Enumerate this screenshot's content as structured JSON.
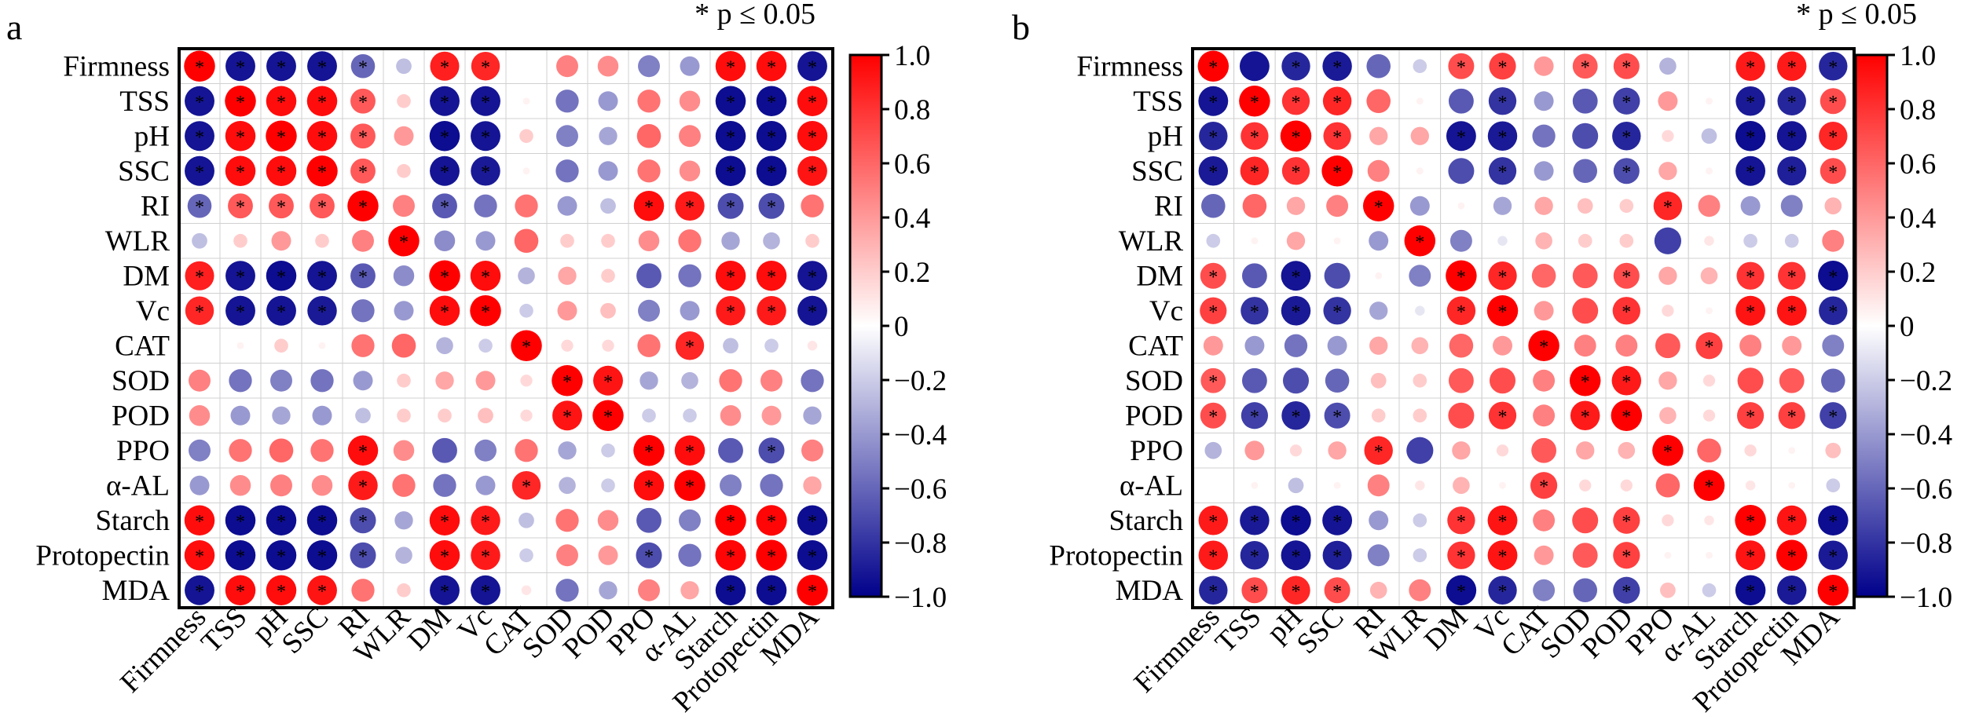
{
  "legend_note": "* p ≤ 0.05",
  "colorbar": {
    "ticks": [
      "1.0",
      "0.8",
      "0.6",
      "0.4",
      "0.2",
      "0",
      "−0.2",
      "−0.4",
      "−0.6",
      "−0.8",
      "−1.0"
    ],
    "tick_values": [
      1.0,
      0.8,
      0.6,
      0.4,
      0.2,
      0,
      -0.2,
      -0.4,
      -0.6,
      -0.8,
      -1.0
    ],
    "colors": {
      "max": "#ff0000",
      "mid": "#ffffff",
      "min": "#00008b"
    }
  },
  "chart_data": [
    {
      "type": "heatmap",
      "panel": "a",
      "title": "a",
      "variables": [
        "Firmness",
        "TSS",
        "pH",
        "SSC",
        "RI",
        "WLR",
        "DM",
        "Vc",
        "CAT",
        "SOD",
        "POD",
        "PPO",
        "α-AL",
        "Starch",
        "Protopectin",
        "MDA"
      ],
      "value_range": [
        -1,
        1
      ],
      "matrix": [
        [
          1,
          -0.92,
          -0.92,
          -0.92,
          -0.6,
          -0.25,
          0.88,
          0.85,
          0,
          0.5,
          0.45,
          -0.5,
          -0.4,
          0.95,
          0.95,
          -0.92
        ],
        [
          -0.92,
          1,
          0.95,
          0.95,
          0.65,
          0.2,
          -0.92,
          -0.92,
          0.05,
          -0.55,
          -0.4,
          0.55,
          0.45,
          -0.95,
          -0.95,
          0.95
        ],
        [
          -0.92,
          0.95,
          1,
          0.95,
          0.65,
          0.4,
          -0.95,
          -0.92,
          0.2,
          -0.5,
          -0.35,
          0.6,
          0.5,
          -0.95,
          -0.95,
          0.95
        ],
        [
          -0.92,
          0.95,
          0.95,
          1,
          0.65,
          0.2,
          -0.92,
          -0.9,
          0.05,
          -0.55,
          -0.4,
          0.55,
          0.45,
          -0.95,
          -0.95,
          0.92
        ],
        [
          -0.6,
          0.65,
          0.65,
          0.65,
          1,
          0.5,
          -0.65,
          -0.55,
          0.55,
          -0.4,
          -0.25,
          0.95,
          0.9,
          -0.7,
          -0.7,
          0.55
        ],
        [
          -0.25,
          0.2,
          0.4,
          0.2,
          0.5,
          1,
          -0.45,
          -0.4,
          0.6,
          0.2,
          0.2,
          0.45,
          0.55,
          -0.35,
          -0.3,
          0.2
        ],
        [
          0.88,
          -0.92,
          -0.95,
          -0.92,
          -0.65,
          -0.45,
          1,
          0.95,
          -0.3,
          0.35,
          0.2,
          -0.65,
          -0.55,
          0.95,
          0.95,
          -0.92
        ],
        [
          0.85,
          -0.92,
          -0.92,
          -0.9,
          -0.55,
          -0.4,
          0.95,
          1,
          -0.2,
          0.4,
          0.25,
          -0.5,
          -0.4,
          0.9,
          0.9,
          -0.92
        ],
        [
          0,
          0.05,
          0.2,
          0.05,
          0.55,
          0.6,
          -0.3,
          -0.2,
          1,
          0.15,
          0.15,
          0.55,
          0.85,
          -0.25,
          -0.2,
          0.1
        ],
        [
          0.5,
          -0.55,
          -0.5,
          -0.55,
          -0.4,
          0.2,
          0.35,
          0.4,
          0.15,
          1,
          0.92,
          -0.35,
          -0.3,
          0.55,
          0.5,
          -0.55
        ],
        [
          0.45,
          -0.4,
          -0.35,
          -0.4,
          -0.25,
          0.2,
          0.2,
          0.25,
          0.15,
          0.92,
          1,
          -0.2,
          -0.2,
          0.45,
          0.4,
          -0.35
        ],
        [
          -0.5,
          0.55,
          0.6,
          0.55,
          0.95,
          0.45,
          -0.65,
          -0.5,
          0.55,
          -0.35,
          -0.2,
          1,
          0.95,
          -0.65,
          -0.7,
          0.5
        ],
        [
          -0.4,
          0.45,
          0.5,
          0.45,
          0.9,
          0.55,
          -0.55,
          -0.4,
          0.85,
          -0.3,
          -0.2,
          0.95,
          1,
          -0.5,
          -0.55,
          0.35
        ],
        [
          0.95,
          -0.95,
          -0.95,
          -0.95,
          -0.7,
          -0.35,
          0.95,
          0.9,
          -0.25,
          0.55,
          0.45,
          -0.65,
          -0.5,
          1,
          0.98,
          -0.95
        ],
        [
          0.95,
          -0.95,
          -0.95,
          -0.95,
          -0.7,
          -0.3,
          0.95,
          0.9,
          -0.2,
          0.5,
          0.4,
          -0.7,
          -0.55,
          0.98,
          1,
          -0.95
        ],
        [
          -0.92,
          0.95,
          0.95,
          0.92,
          0.55,
          0.2,
          -0.92,
          -0.92,
          0.1,
          -0.55,
          -0.35,
          0.5,
          0.35,
          -0.95,
          -0.95,
          1
        ]
      ],
      "significant": [
        [
          1,
          1,
          1,
          1,
          1,
          0,
          1,
          1,
          0,
          0,
          0,
          0,
          0,
          1,
          1,
          1
        ],
        [
          1,
          1,
          1,
          1,
          1,
          0,
          1,
          1,
          0,
          0,
          0,
          0,
          0,
          1,
          1,
          1
        ],
        [
          1,
          1,
          1,
          1,
          1,
          0,
          1,
          1,
          0,
          0,
          0,
          0,
          0,
          1,
          1,
          1
        ],
        [
          1,
          1,
          1,
          1,
          1,
          0,
          1,
          1,
          0,
          0,
          0,
          0,
          0,
          1,
          1,
          1
        ],
        [
          1,
          1,
          1,
          1,
          1,
          0,
          1,
          0,
          0,
          0,
          0,
          1,
          1,
          1,
          1,
          0
        ],
        [
          0,
          0,
          0,
          0,
          0,
          1,
          0,
          0,
          0,
          0,
          0,
          0,
          0,
          0,
          0,
          0
        ],
        [
          1,
          1,
          1,
          1,
          1,
          0,
          1,
          1,
          0,
          0,
          0,
          0,
          0,
          1,
          1,
          1
        ],
        [
          1,
          1,
          1,
          1,
          0,
          0,
          1,
          1,
          0,
          0,
          0,
          0,
          0,
          1,
          1,
          1
        ],
        [
          0,
          0,
          0,
          0,
          0,
          0,
          0,
          0,
          1,
          0,
          0,
          0,
          1,
          0,
          0,
          0
        ],
        [
          0,
          0,
          0,
          0,
          0,
          0,
          0,
          0,
          0,
          1,
          1,
          0,
          0,
          0,
          0,
          0
        ],
        [
          0,
          0,
          0,
          0,
          0,
          0,
          0,
          0,
          0,
          1,
          1,
          0,
          0,
          0,
          0,
          0
        ],
        [
          0,
          0,
          0,
          0,
          1,
          0,
          0,
          0,
          0,
          0,
          0,
          1,
          1,
          0,
          1,
          0
        ],
        [
          0,
          0,
          0,
          0,
          1,
          0,
          0,
          0,
          1,
          0,
          0,
          1,
          1,
          0,
          0,
          0
        ],
        [
          1,
          1,
          1,
          1,
          1,
          0,
          1,
          1,
          0,
          0,
          0,
          0,
          0,
          1,
          1,
          1
        ],
        [
          1,
          1,
          1,
          1,
          1,
          0,
          1,
          1,
          0,
          0,
          0,
          1,
          0,
          1,
          1,
          1
        ],
        [
          1,
          1,
          1,
          1,
          0,
          0,
          1,
          1,
          0,
          0,
          0,
          0,
          0,
          1,
          1,
          1
        ]
      ]
    },
    {
      "type": "heatmap",
      "panel": "b",
      "title": "b",
      "variables": [
        "Firmness",
        "TSS",
        "pH",
        "SSC",
        "RI",
        "WLR",
        "DM",
        "Vc",
        "CAT",
        "SOD",
        "POD",
        "PPO",
        "α-AL",
        "Starch",
        "Protopectin",
        "MDA"
      ],
      "value_range": [
        -1,
        1
      ],
      "matrix": [
        [
          1,
          -0.92,
          -0.85,
          -0.9,
          -0.6,
          -0.2,
          0.7,
          0.75,
          0.4,
          0.65,
          0.7,
          -0.3,
          0,
          0.9,
          0.9,
          -0.85
        ],
        [
          -0.92,
          1,
          0.8,
          0.85,
          0.6,
          0.05,
          -0.65,
          -0.8,
          -0.4,
          -0.65,
          -0.75,
          0.4,
          0.05,
          -0.9,
          -0.85,
          0.7
        ],
        [
          -0.85,
          0.8,
          1,
          0.8,
          0.35,
          0.35,
          -0.92,
          -0.9,
          -0.55,
          -0.7,
          -0.85,
          0.15,
          -0.25,
          -0.95,
          -0.92,
          0.85
        ],
        [
          -0.9,
          0.85,
          0.8,
          1,
          0.5,
          0.05,
          -0.7,
          -0.8,
          -0.4,
          -0.6,
          -0.7,
          0.35,
          0.05,
          -0.92,
          -0.88,
          0.7
        ],
        [
          -0.6,
          0.6,
          0.35,
          0.5,
          1,
          -0.4,
          0.05,
          -0.35,
          0.35,
          0.25,
          0.2,
          0.85,
          0.5,
          -0.4,
          -0.5,
          0.3
        ],
        [
          -0.2,
          0.05,
          0.35,
          0.05,
          -0.4,
          1,
          -0.5,
          -0.1,
          0.3,
          0.2,
          0.2,
          -0.75,
          0.1,
          -0.2,
          -0.2,
          0.5
        ],
        [
          0.7,
          -0.65,
          -0.92,
          -0.7,
          0.05,
          -0.5,
          1,
          0.85,
          0.6,
          0.65,
          0.7,
          0.35,
          0.3,
          0.8,
          0.8,
          -0.95
        ],
        [
          0.75,
          -0.8,
          -0.9,
          -0.8,
          -0.35,
          -0.1,
          0.85,
          1,
          0.4,
          0.7,
          0.8,
          0.15,
          0.05,
          0.92,
          0.92,
          -0.85
        ],
        [
          0.4,
          -0.4,
          -0.55,
          -0.4,
          0.35,
          0.3,
          0.6,
          0.4,
          1,
          0.5,
          0.5,
          0.65,
          0.75,
          0.5,
          0.4,
          -0.5
        ],
        [
          0.65,
          -0.65,
          -0.7,
          -0.6,
          0.25,
          0.2,
          0.65,
          0.7,
          0.5,
          1,
          0.9,
          0.35,
          0.15,
          0.7,
          0.65,
          -0.6
        ],
        [
          0.7,
          -0.75,
          -0.85,
          -0.7,
          0.2,
          0.2,
          0.7,
          0.8,
          0.5,
          0.9,
          1,
          0.3,
          0.15,
          0.75,
          0.75,
          -0.75
        ],
        [
          -0.3,
          0.4,
          0.15,
          0.35,
          0.85,
          -0.75,
          0.35,
          0.15,
          0.65,
          0.35,
          0.3,
          1,
          0.6,
          0.15,
          0.05,
          0.25
        ],
        [
          0,
          0.05,
          -0.25,
          0.05,
          0.5,
          0.1,
          0.3,
          0.05,
          0.75,
          0.15,
          0.15,
          0.6,
          1,
          0.1,
          0.05,
          -0.2
        ],
        [
          0.9,
          -0.9,
          -0.95,
          -0.92,
          -0.4,
          -0.2,
          0.8,
          0.92,
          0.5,
          0.7,
          0.75,
          0.15,
          0.1,
          1,
          0.92,
          -0.95
        ],
        [
          0.9,
          -0.85,
          -0.92,
          -0.88,
          -0.5,
          -0.2,
          0.8,
          0.92,
          0.4,
          0.65,
          0.75,
          0.05,
          0.05,
          0.92,
          1,
          -0.9
        ],
        [
          -0.85,
          0.7,
          0.85,
          0.7,
          0.3,
          0.5,
          -0.95,
          -0.85,
          -0.5,
          -0.6,
          -0.75,
          0.25,
          -0.2,
          -0.95,
          -0.9,
          1
        ]
      ],
      "significant": [
        [
          1,
          0,
          1,
          1,
          0,
          0,
          1,
          1,
          0,
          1,
          1,
          0,
          0,
          1,
          1,
          1
        ],
        [
          1,
          1,
          1,
          1,
          0,
          0,
          0,
          1,
          0,
          0,
          1,
          0,
          0,
          1,
          1,
          1
        ],
        [
          1,
          1,
          1,
          1,
          0,
          0,
          1,
          1,
          0,
          0,
          1,
          0,
          0,
          1,
          1,
          1
        ],
        [
          1,
          1,
          1,
          1,
          0,
          0,
          0,
          1,
          0,
          0,
          1,
          0,
          0,
          1,
          1,
          1
        ],
        [
          0,
          0,
          0,
          0,
          1,
          0,
          0,
          0,
          0,
          0,
          0,
          1,
          0,
          0,
          0,
          0
        ],
        [
          0,
          0,
          0,
          0,
          0,
          1,
          0,
          0,
          0,
          0,
          0,
          0,
          0,
          0,
          0,
          0
        ],
        [
          1,
          0,
          1,
          0,
          0,
          0,
          1,
          1,
          0,
          0,
          1,
          0,
          0,
          1,
          1,
          1
        ],
        [
          1,
          1,
          1,
          1,
          0,
          0,
          1,
          1,
          0,
          0,
          1,
          0,
          0,
          1,
          1,
          1
        ],
        [
          0,
          0,
          0,
          0,
          0,
          0,
          0,
          0,
          1,
          0,
          0,
          0,
          1,
          0,
          0,
          0
        ],
        [
          1,
          0,
          0,
          0,
          0,
          0,
          0,
          0,
          0,
          1,
          1,
          0,
          0,
          0,
          0,
          0
        ],
        [
          1,
          1,
          1,
          1,
          0,
          0,
          0,
          1,
          0,
          1,
          1,
          0,
          0,
          1,
          1,
          1
        ],
        [
          0,
          0,
          0,
          0,
          1,
          0,
          0,
          0,
          0,
          0,
          0,
          1,
          0,
          0,
          0,
          0
        ],
        [
          0,
          0,
          0,
          0,
          0,
          0,
          0,
          0,
          1,
          0,
          0,
          0,
          1,
          0,
          0,
          0
        ],
        [
          1,
          1,
          1,
          1,
          0,
          0,
          1,
          1,
          0,
          0,
          1,
          0,
          0,
          1,
          1,
          1
        ],
        [
          1,
          1,
          1,
          1,
          0,
          0,
          1,
          1,
          0,
          0,
          1,
          0,
          0,
          1,
          1,
          1
        ],
        [
          1,
          1,
          1,
          1,
          0,
          0,
          1,
          1,
          0,
          0,
          1,
          0,
          0,
          1,
          1,
          1
        ]
      ]
    }
  ]
}
